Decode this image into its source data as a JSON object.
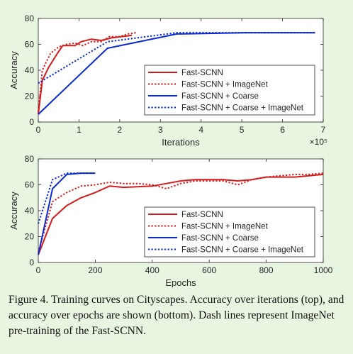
{
  "caption": "Figure 4. Training curves on Cityscapes. Accuracy over iterations (top), and accuracy over epochs are shown (bottom). Dash lines represent ImageNet pre-training of the Fast-SCNN.",
  "colors": {
    "red": "#d41a1a",
    "blue": "#0b2bd1",
    "background": "#e8f5e1"
  },
  "chart_data": [
    {
      "type": "line",
      "xlabel": "Iterations",
      "ylabel": "Accuracy",
      "x_multiplier": "×10⁵",
      "xlim": [
        0,
        7
      ],
      "ylim": [
        0,
        80
      ],
      "xticks": [
        0,
        1,
        2,
        3,
        4,
        5,
        6,
        7
      ],
      "yticks": [
        0,
        20,
        40,
        60,
        80
      ],
      "legend_position": "bottom-right",
      "series": [
        {
          "name": "Fast-SCNN",
          "color": "#d41a1a",
          "dash": false,
          "x": [
            0,
            0.1,
            0.25,
            0.45,
            0.6,
            0.9,
            1.05,
            1.3,
            1.55,
            1.8,
            2.05,
            2.3
          ],
          "y": [
            6,
            32,
            42,
            52,
            59,
            59,
            62,
            64,
            63,
            65,
            66,
            67
          ]
        },
        {
          "name": "Fast-SCNN + ImageNet",
          "color": "#d41a1a",
          "dash": true,
          "x": [
            0,
            0.1,
            0.3,
            0.5,
            0.7,
            0.9,
            1.1,
            1.3,
            1.55,
            1.75,
            2.0,
            2.2,
            2.4
          ],
          "y": [
            8,
            40,
            53,
            58,
            60,
            61,
            59,
            62,
            62,
            66,
            66,
            68,
            69
          ]
        },
        {
          "name": "Fast-SCNN + Coarse",
          "color": "#0b2bd1",
          "dash": false,
          "x": [
            0,
            1.7,
            3.4,
            5.1,
            6.8
          ],
          "y": [
            6,
            57,
            68,
            69,
            69
          ]
        },
        {
          "name": "Fast-SCNN + Coarse + ImageNet",
          "color": "#0b2bd1",
          "dash": true,
          "x": [
            0,
            1.7,
            3.4,
            5.1,
            6.8
          ],
          "y": [
            30,
            62,
            69,
            69,
            69
          ]
        }
      ]
    },
    {
      "type": "line",
      "xlabel": "Epochs",
      "ylabel": "Accuracy",
      "xlim": [
        0,
        1000
      ],
      "ylim": [
        0,
        80
      ],
      "xticks": [
        0,
        200,
        400,
        600,
        800,
        1000
      ],
      "yticks": [
        0,
        20,
        40,
        60,
        80
      ],
      "legend_position": "bottom-right",
      "series": [
        {
          "name": "Fast-SCNN",
          "color": "#d41a1a",
          "dash": false,
          "x": [
            0,
            50,
            100,
            150,
            200,
            250,
            300,
            400,
            450,
            500,
            550,
            600,
            650,
            700,
            750,
            800,
            850,
            900,
            950,
            1000
          ],
          "y": [
            6,
            34,
            44,
            50,
            54,
            59,
            58,
            59,
            61,
            63,
            64,
            64,
            64,
            63,
            64,
            66,
            66,
            66,
            67,
            68
          ]
        },
        {
          "name": "Fast-SCNN + ImageNet",
          "color": "#d41a1a",
          "dash": true,
          "x": [
            0,
            50,
            100,
            150,
            200,
            250,
            300,
            350,
            400,
            450,
            500,
            550,
            600,
            650,
            700,
            750,
            800,
            850,
            900,
            950,
            1000
          ],
          "y": [
            8,
            47,
            54,
            59,
            60,
            62,
            61,
            61,
            60,
            57,
            61,
            63,
            63,
            63,
            60,
            64,
            66,
            67,
            68,
            68,
            69
          ]
        },
        {
          "name": "Fast-SCNN + Coarse",
          "color": "#0b2bd1",
          "dash": false,
          "x": [
            0,
            50,
            100,
            150,
            200
          ],
          "y": [
            6,
            57,
            68,
            69,
            69
          ]
        },
        {
          "name": "Fast-SCNN + Coarse + ImageNet",
          "color": "#0b2bd1",
          "dash": true,
          "x": [
            0,
            50,
            100,
            150,
            200
          ],
          "y": [
            30,
            64,
            69,
            69,
            69
          ]
        }
      ]
    }
  ]
}
